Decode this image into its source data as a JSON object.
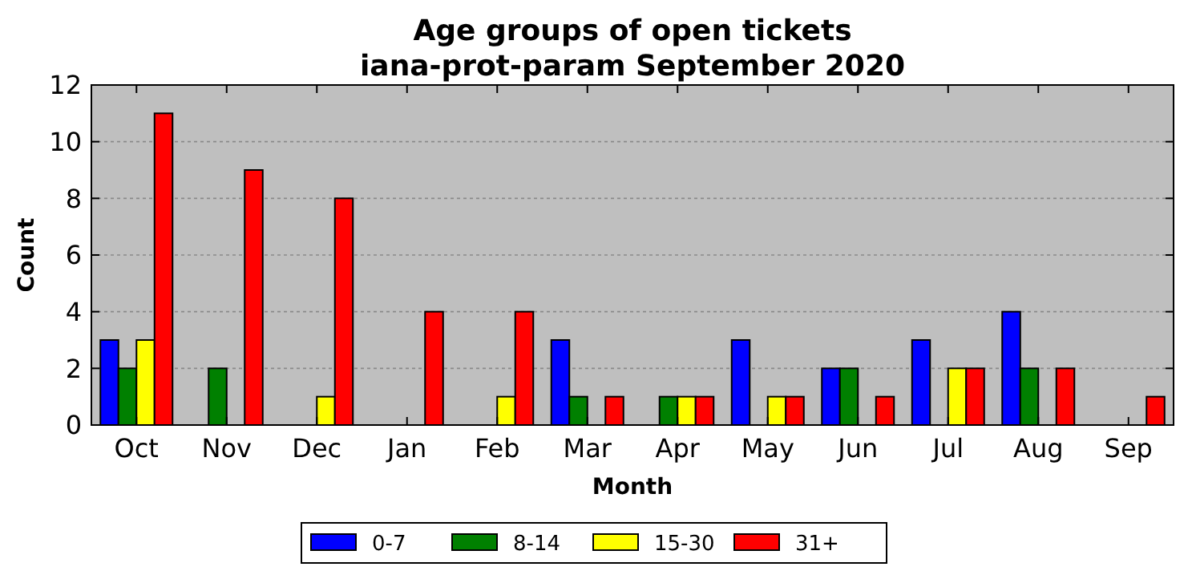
{
  "chart_data": {
    "type": "bar",
    "title": "Age groups of open tickets",
    "subtitle": "iana-prot-param September 2020",
    "xlabel": "Month",
    "ylabel": "Count",
    "categories": [
      "Oct",
      "Nov",
      "Dec",
      "Jan",
      "Feb",
      "Mar",
      "Apr",
      "May",
      "Jun",
      "Jul",
      "Aug",
      "Sep"
    ],
    "series": [
      {
        "name": "0-7",
        "color": "#0000ff",
        "values": [
          3,
          0,
          0,
          0,
          0,
          3,
          0,
          3,
          2,
          3,
          4,
          0
        ]
      },
      {
        "name": "8-14",
        "color": "#008000",
        "values": [
          2,
          2,
          0,
          0,
          0,
          1,
          1,
          0,
          2,
          0,
          2,
          0
        ]
      },
      {
        "name": "15-30",
        "color": "#ffff00",
        "values": [
          3,
          0,
          1,
          0,
          1,
          0,
          1,
          1,
          0,
          2,
          0,
          0
        ]
      },
      {
        "name": "31+",
        "color": "#ff0000",
        "values": [
          11,
          9,
          8,
          4,
          4,
          1,
          1,
          1,
          1,
          2,
          2,
          1
        ]
      }
    ],
    "ylim": [
      0,
      12
    ],
    "yticks": [
      0,
      2,
      4,
      6,
      8,
      10,
      12
    ],
    "grid": "y",
    "legend": "bottom"
  }
}
